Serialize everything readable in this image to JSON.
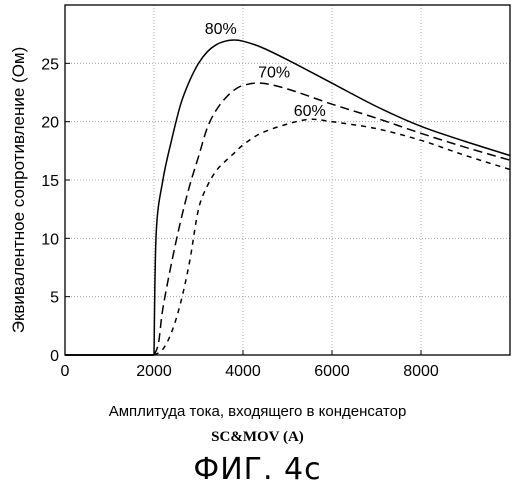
{
  "chart_data": {
    "type": "line",
    "ylabel": "Эквивалентное сопротивление (Ом)",
    "xlabel": "Амплитуда тока, входящего в конденсатор",
    "xlabel_unit": "SC&MOV  (A)",
    "figure_label": "ФИГ. 4с",
    "xlim": [
      0,
      10000
    ],
    "ylim": [
      0,
      30
    ],
    "xticks": [
      0,
      2000,
      4000,
      6000,
      8000
    ],
    "yticks": [
      0,
      5,
      10,
      15,
      20,
      25
    ],
    "grid": true,
    "series": [
      {
        "name": "80%",
        "style": "solid",
        "x": [
          0,
          2000,
          2050,
          2200,
          2400,
          2600,
          2800,
          3000,
          3200,
          3400,
          3600,
          3800,
          4000,
          4400,
          5000,
          6000,
          7000,
          8000,
          9000,
          10000
        ],
        "y": [
          0,
          0,
          10.5,
          15,
          18.5,
          21.5,
          23.5,
          25,
          26,
          26.6,
          26.9,
          27,
          26.9,
          26.4,
          25.3,
          23.3,
          21.3,
          19.6,
          18.3,
          17.1
        ]
      },
      {
        "name": "70%",
        "style": "dashed",
        "x": [
          0,
          2000,
          2100,
          2200,
          2400,
          2600,
          2800,
          3000,
          3200,
          3400,
          3600,
          3800,
          4000,
          4400,
          5000,
          6000,
          7000,
          8000,
          9000,
          10000
        ],
        "y": [
          0,
          0,
          1,
          4,
          8,
          11.5,
          14.5,
          17,
          19.5,
          21,
          22,
          22.7,
          23.1,
          23.3,
          22.8,
          21.5,
          20.3,
          19,
          17.8,
          16.7
        ]
      },
      {
        "name": "60%",
        "style": "dashed",
        "x": [
          0,
          2000,
          2200,
          2400,
          2600,
          2800,
          3000,
          3200,
          3400,
          3600,
          3800,
          4000,
          4400,
          5000,
          5500,
          6000,
          7000,
          8000,
          9000,
          10000
        ],
        "y": [
          0,
          0,
          0.5,
          2,
          4.5,
          8,
          12.5,
          14.5,
          15.8,
          16.6,
          17.3,
          18,
          19,
          19.8,
          20.2,
          20,
          19.4,
          18.4,
          17.1,
          15.9
        ]
      }
    ],
    "annotations": [
      {
        "text": "80%",
        "x": 3500,
        "y": 27.5
      },
      {
        "text": "70%",
        "x": 4700,
        "y": 23.8
      },
      {
        "text": "60%",
        "x": 5500,
        "y": 20.5
      }
    ]
  }
}
